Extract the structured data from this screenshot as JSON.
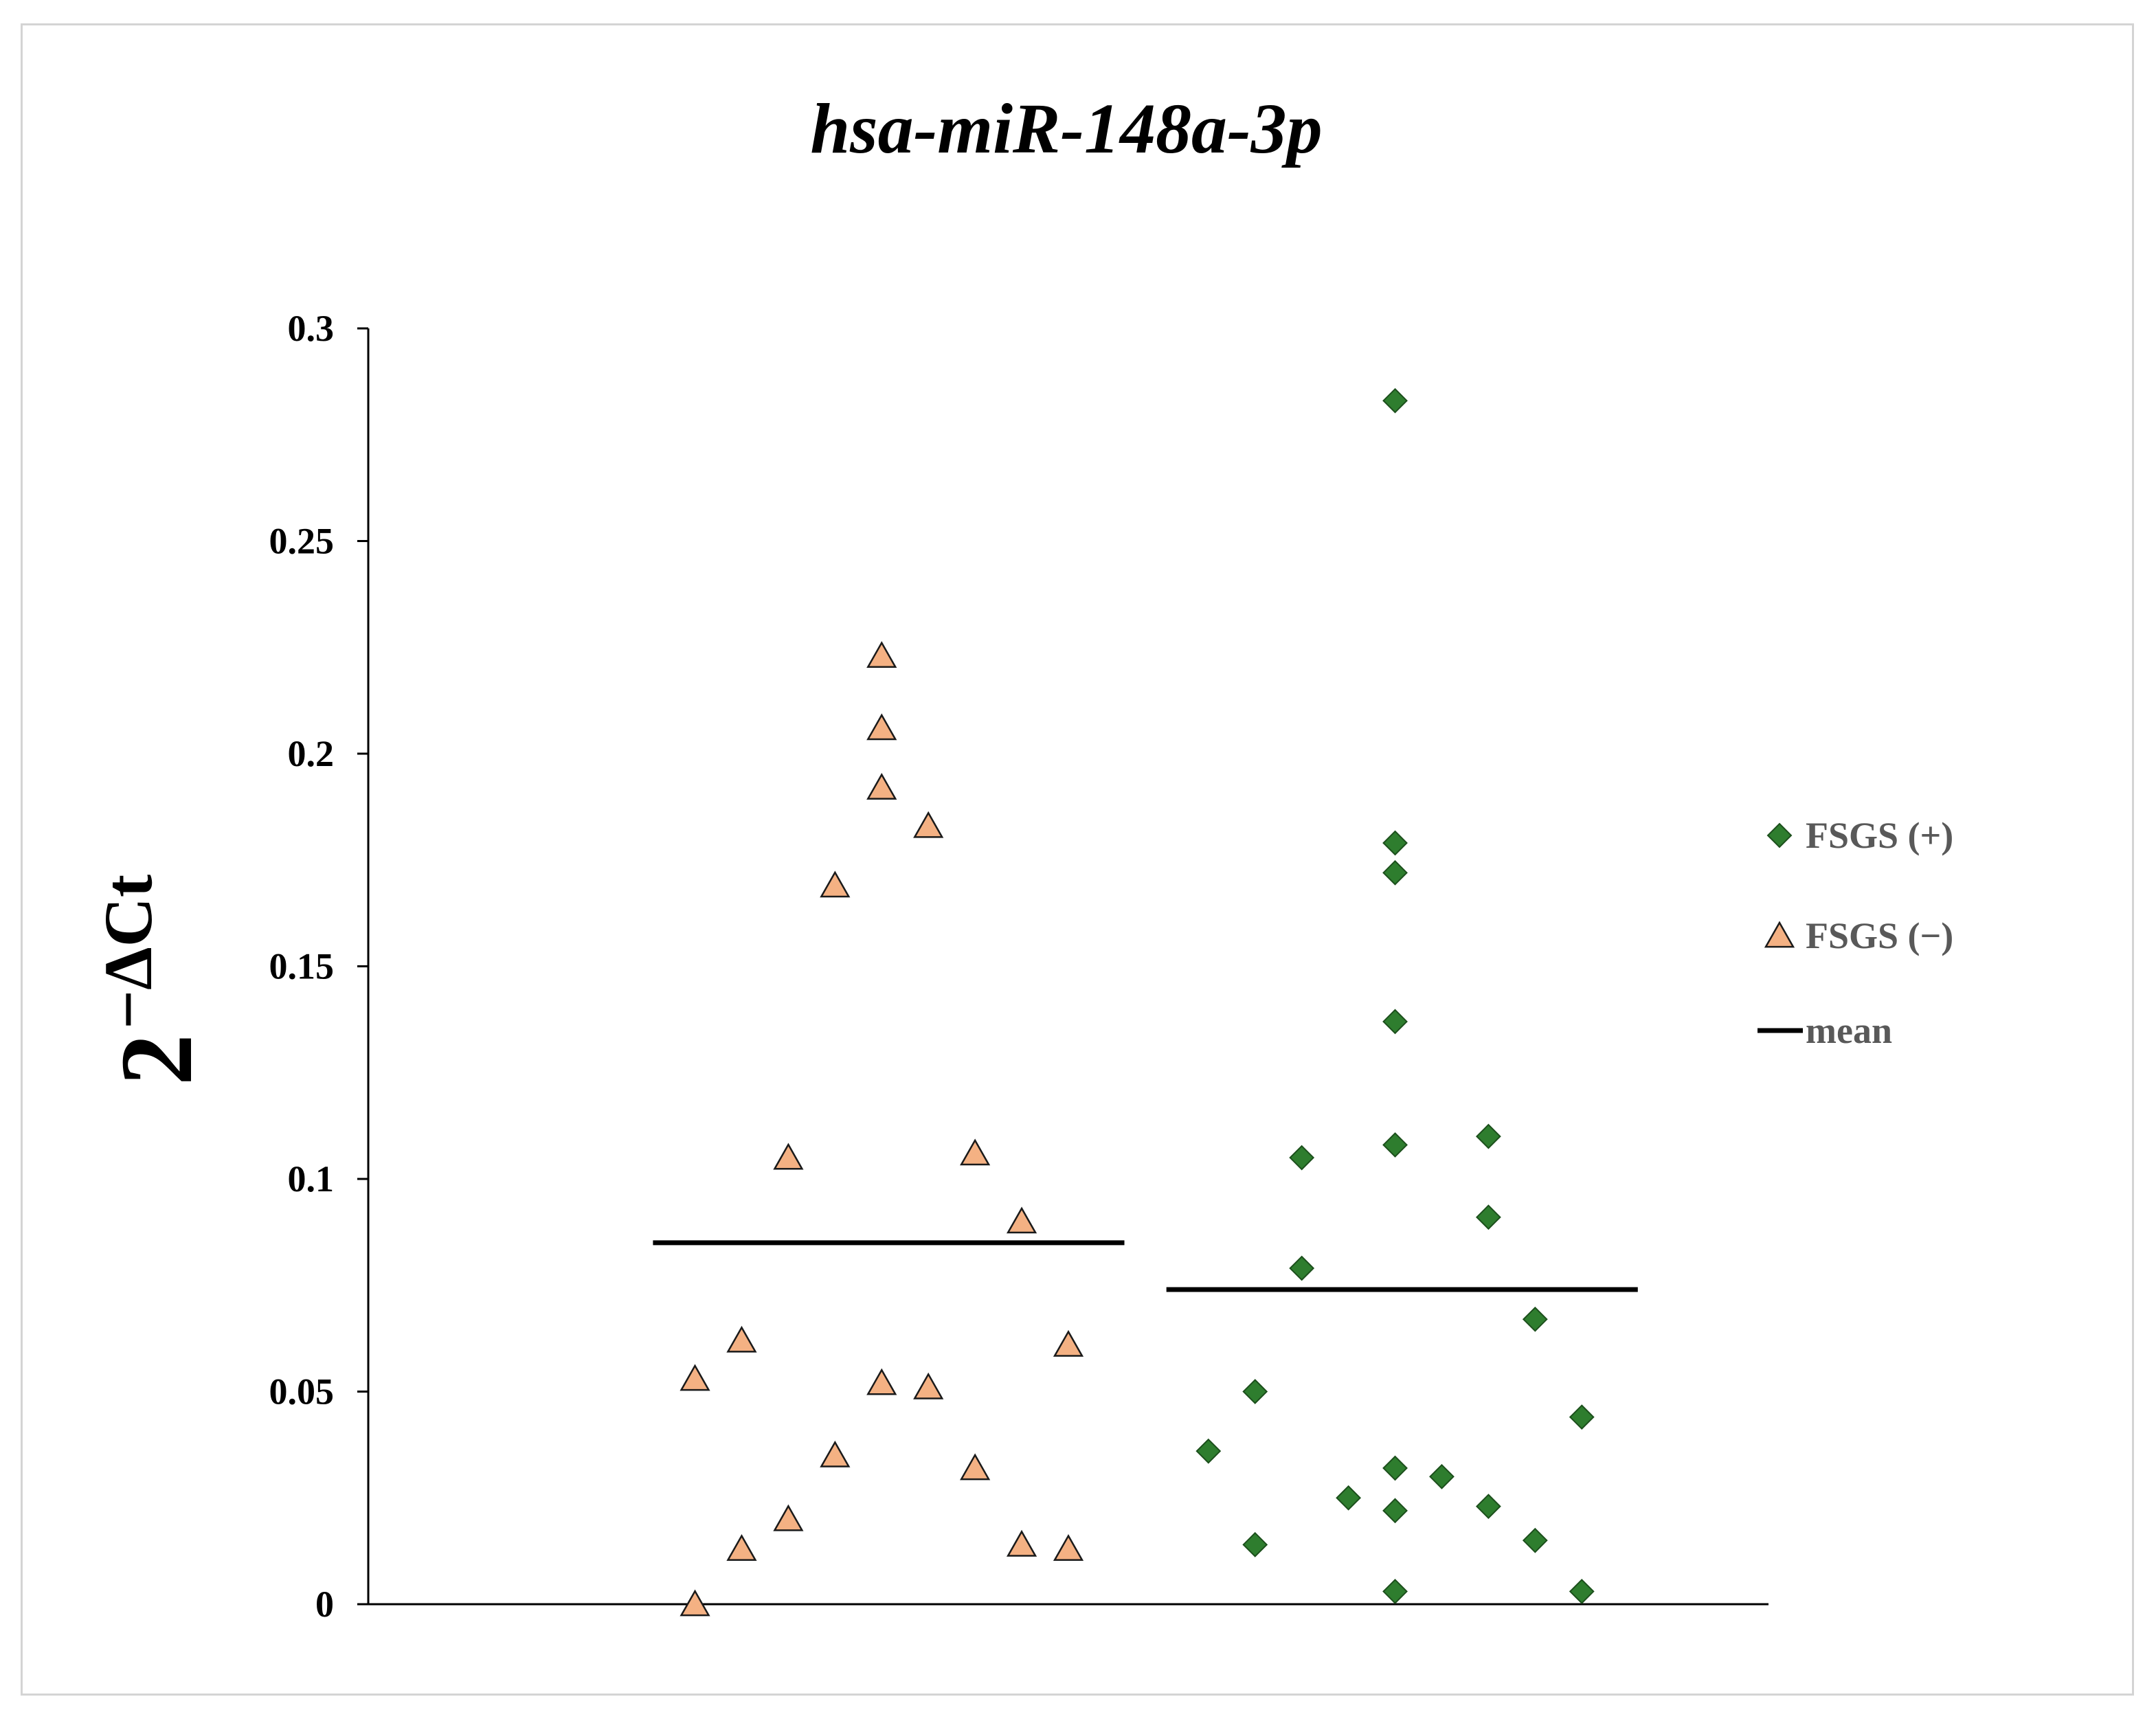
{
  "chart_data": {
    "type": "scatter",
    "title": "hsa-miR-148a-3p",
    "xlabel": "",
    "ylabel": {
      "base": "2",
      "exponent": "−ΔCt"
    },
    "ylim": [
      0,
      0.3
    ],
    "yticks": [
      {
        "value": 0,
        "label": "0"
      },
      {
        "value": 0.05,
        "label": "0.05"
      },
      {
        "value": 0.1,
        "label": "0.1"
      },
      {
        "value": 0.15,
        "label": "0.15"
      },
      {
        "value": 0.2,
        "label": "0.2"
      },
      {
        "value": 0.25,
        "label": "0.25"
      },
      {
        "value": 0.3,
        "label": "0.3"
      }
    ],
    "xlim": [
      0,
      30
    ],
    "grid": false,
    "legend_position": "right",
    "series": [
      {
        "name": "FSGS (+)",
        "marker": "diamond",
        "color": "#2E7D2E",
        "stroke": "#1C4F1C",
        "points": [
          {
            "x": 18,
            "y": 0.036
          },
          {
            "x": 19,
            "y": 0.05
          },
          {
            "x": 19,
            "y": 0.014
          },
          {
            "x": 20,
            "y": 0.105
          },
          {
            "x": 20,
            "y": 0.079
          },
          {
            "x": 21,
            "y": 0.025
          },
          {
            "x": 22,
            "y": 0.283
          },
          {
            "x": 22,
            "y": 0.179
          },
          {
            "x": 22,
            "y": 0.172
          },
          {
            "x": 22,
            "y": 0.137
          },
          {
            "x": 22,
            "y": 0.108
          },
          {
            "x": 22,
            "y": 0.032
          },
          {
            "x": 22,
            "y": 0.022
          },
          {
            "x": 22,
            "y": 0.003
          },
          {
            "x": 23,
            "y": 0.03
          },
          {
            "x": 24,
            "y": 0.11
          },
          {
            "x": 24,
            "y": 0.091
          },
          {
            "x": 24,
            "y": 0.023
          },
          {
            "x": 25,
            "y": 0.067
          },
          {
            "x": 25,
            "y": 0.015
          },
          {
            "x": 26,
            "y": 0.044
          },
          {
            "x": 26,
            "y": 0.003
          }
        ],
        "mean": 0.074,
        "mean_x_range": [
          17.1,
          27.2
        ]
      },
      {
        "name": "FSGS (−)",
        "marker": "triangle",
        "color": "#F4B183",
        "stroke": "#1a1a1a",
        "points": [
          {
            "x": 7,
            "y": 0.053
          },
          {
            "x": 7,
            "y": 0.0
          },
          {
            "x": 8,
            "y": 0.062
          },
          {
            "x": 8,
            "y": 0.013
          },
          {
            "x": 9,
            "y": 0.105
          },
          {
            "x": 9,
            "y": 0.02
          },
          {
            "x": 10,
            "y": 0.169
          },
          {
            "x": 10,
            "y": 0.035
          },
          {
            "x": 11,
            "y": 0.223
          },
          {
            "x": 11,
            "y": 0.206
          },
          {
            "x": 11,
            "y": 0.192
          },
          {
            "x": 11,
            "y": 0.052
          },
          {
            "x": 12,
            "y": 0.183
          },
          {
            "x": 12,
            "y": 0.051
          },
          {
            "x": 13,
            "y": 0.106
          },
          {
            "x": 13,
            "y": 0.032
          },
          {
            "x": 14,
            "y": 0.09
          },
          {
            "x": 14,
            "y": 0.014
          },
          {
            "x": 15,
            "y": 0.061
          },
          {
            "x": 15,
            "y": 0.013
          }
        ],
        "mean": 0.085,
        "mean_x_range": [
          6.1,
          16.2
        ]
      }
    ],
    "legend": [
      {
        "label": "FSGS (+)",
        "marker": "diamond"
      },
      {
        "label": "FSGS (−)",
        "marker": "triangle"
      },
      {
        "label": "mean",
        "marker": "line"
      }
    ],
    "mean_line_color": "#000000"
  }
}
